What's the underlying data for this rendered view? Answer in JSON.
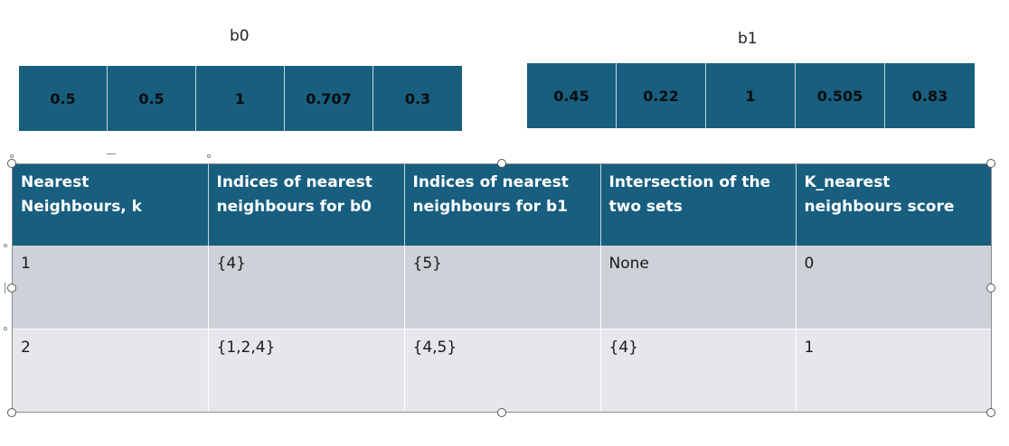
{
  "vectors": {
    "b0": {
      "label": "b0",
      "values": [
        "0.5",
        "0.5",
        "1",
        "0.707",
        "0.3"
      ]
    },
    "b1": {
      "label": "b1",
      "values": [
        "0.45",
        "0.22",
        "1",
        "0.505",
        "0.83"
      ]
    }
  },
  "table": {
    "headers": [
      "Nearest Neighbours, k",
      "Indices of nearest neighbours for b0",
      "Indices of nearest neighbours for b1",
      "Intersection of the two sets",
      "K_nearest neighbours score"
    ],
    "rows": [
      [
        "1",
        "{4}",
        "{5}",
        "None",
        "0"
      ],
      [
        "2",
        "{1,2,4}",
        "{4,5}",
        "{4}",
        "1"
      ]
    ]
  },
  "colors": {
    "header_bg": "#175e7f",
    "row_odd_bg": "#cdd1d8",
    "row_even_bg": "#e5e7eb"
  }
}
